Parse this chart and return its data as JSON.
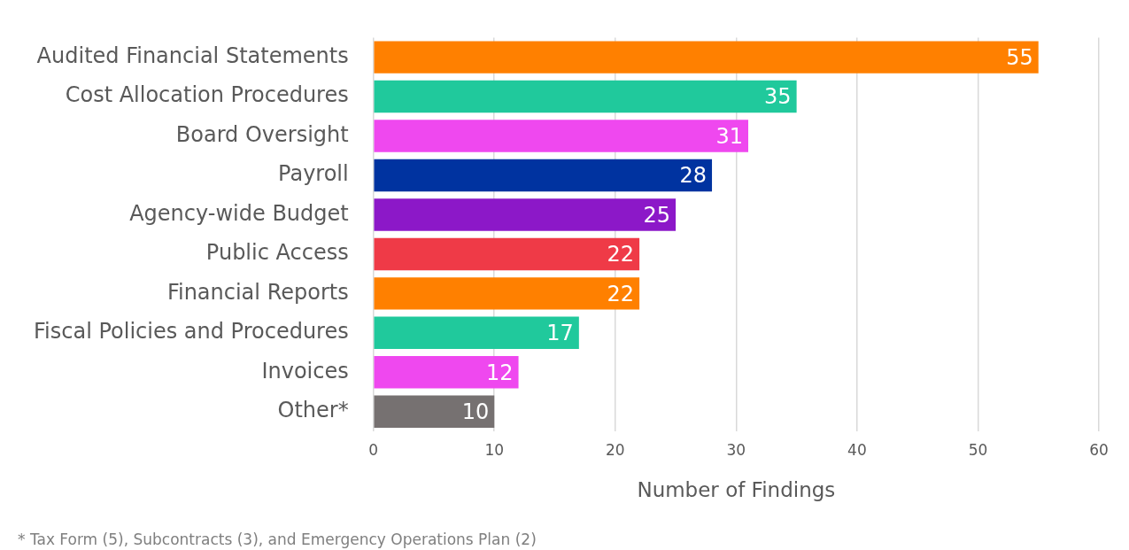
{
  "chart_data": {
    "type": "bar",
    "orientation": "horizontal",
    "xlabel": "Number of Findings",
    "categories": [
      "Audited Financial Statements",
      "Cost Allocation Procedures",
      "Board Oversight",
      "Payroll",
      "Agency-wide Budget",
      "Public Access",
      "Financial Reports",
      "Fiscal Policies and Procedures",
      "Invoices",
      "Other*"
    ],
    "values": [
      55,
      35,
      31,
      28,
      25,
      22,
      22,
      17,
      12,
      10
    ],
    "colors": [
      "#ff8000",
      "#20c99c",
      "#ef48ef",
      "#0033a0",
      "#8c18c8",
      "#ef3a47",
      "#ff8000",
      "#20c99c",
      "#ef48ef",
      "#767171"
    ],
    "xlim": [
      0,
      60
    ],
    "xticks": [
      0,
      10,
      20,
      30,
      40,
      50,
      60
    ],
    "grid": "x",
    "data_labels": true,
    "legend": false,
    "annotations": [
      "* Tax Form (5), Subcontracts (3), and Emergency Operations Plan (2)"
    ]
  }
}
